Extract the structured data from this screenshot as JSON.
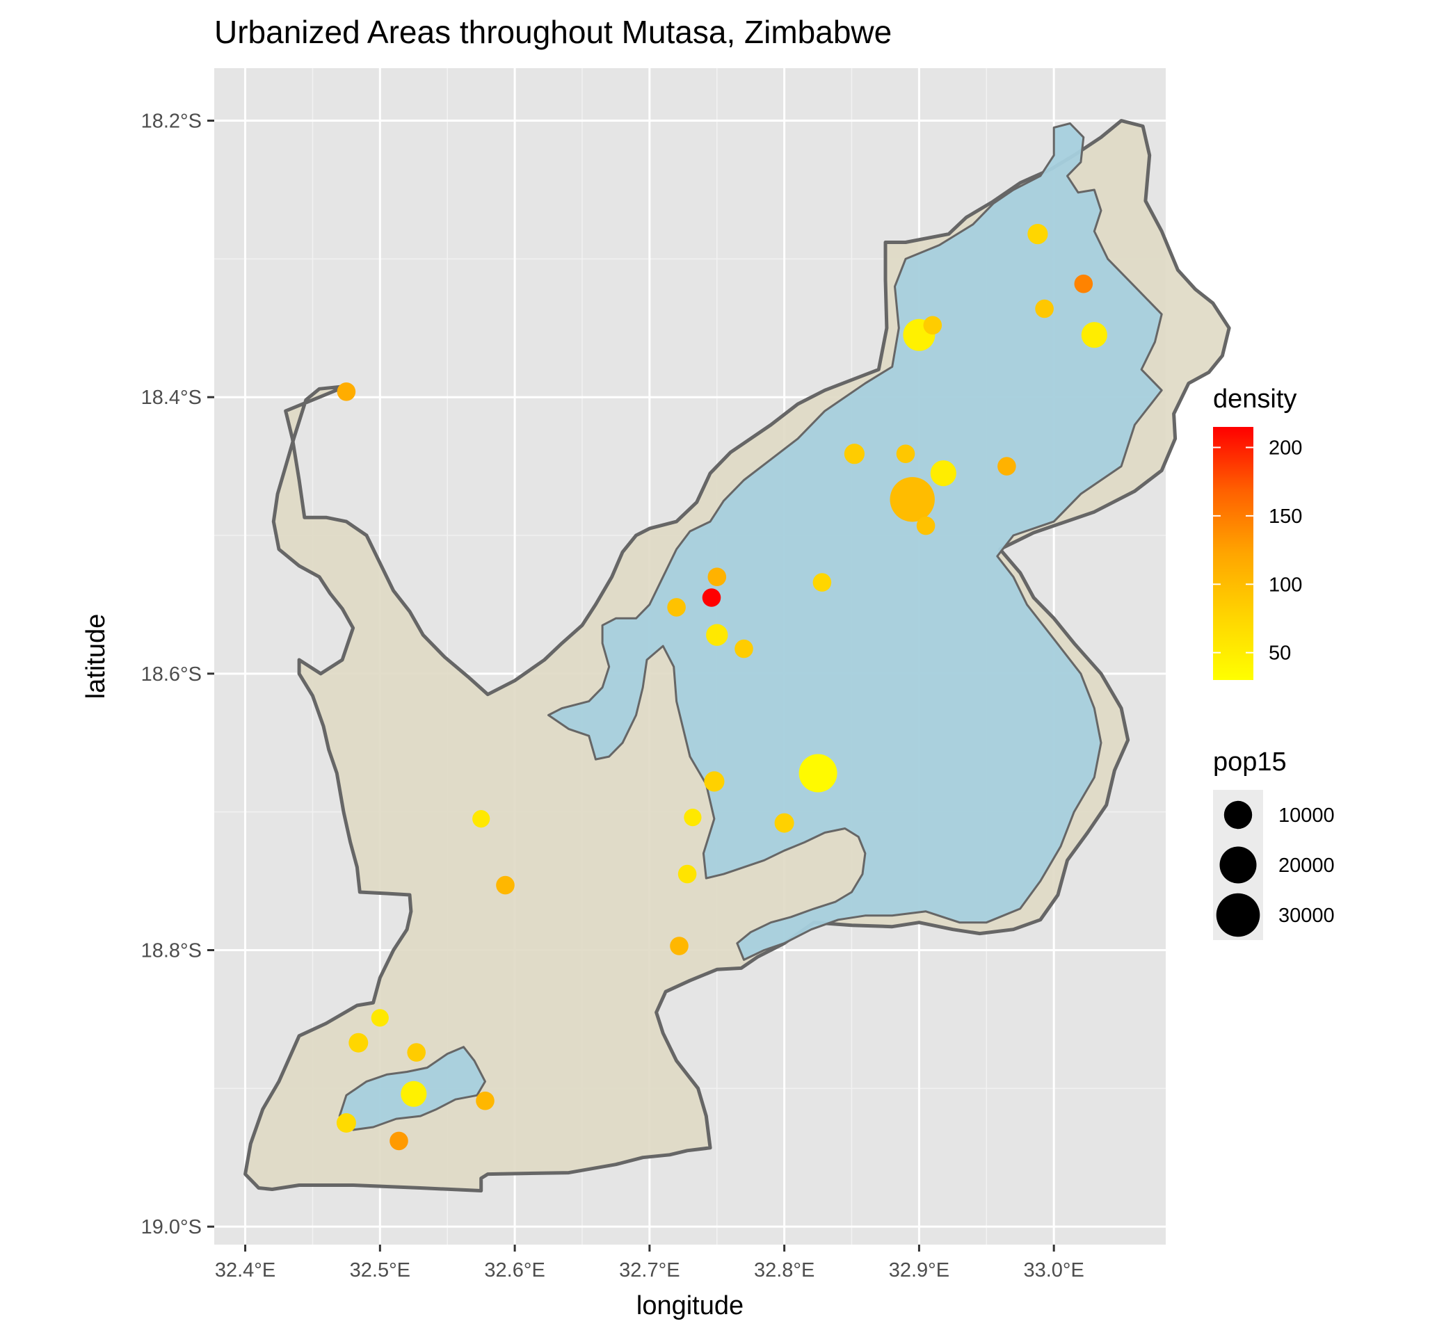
{
  "chart_data": {
    "type": "map",
    "title": "Urbanized Areas throughout Mutasa, Zimbabwe",
    "xlabel": "longitude",
    "ylabel": "latitude",
    "xlim": [
      32.377,
      33.083
    ],
    "ylim": [
      -19.013,
      -18.162
    ],
    "x_ticks": [
      {
        "value": 32.4,
        "label": "32.4°E"
      },
      {
        "value": 32.5,
        "label": "32.5°E"
      },
      {
        "value": 32.6,
        "label": "32.6°E"
      },
      {
        "value": 32.7,
        "label": "32.7°E"
      },
      {
        "value": 32.8,
        "label": "32.8°E"
      },
      {
        "value": 32.9,
        "label": "32.9°E"
      },
      {
        "value": 33.0,
        "label": "33.0°E"
      }
    ],
    "y_ticks": [
      {
        "value": -18.2,
        "label": "18.2°S"
      },
      {
        "value": -18.4,
        "label": "18.4°S"
      },
      {
        "value": -18.6,
        "label": "18.6°S"
      },
      {
        "value": -18.8,
        "label": "18.8°S"
      },
      {
        "value": -19.0,
        "label": "19.0°S"
      }
    ],
    "grid": true,
    "panel_background": "#e5e5e5",
    "district_fill": "#e0dac5",
    "urban_fill": "#a6d0de",
    "outline_color": "#666666",
    "legends": {
      "density": {
        "title": "density",
        "position": "right",
        "gradient": [
          "#ffff00",
          "#ffd500",
          "#ffa500",
          "#ff6000",
          "#ff0000"
        ],
        "range": [
          30,
          215
        ],
        "ticks": [
          {
            "value": 200,
            "label": "200"
          },
          {
            "value": 150,
            "label": "150"
          },
          {
            "value": 100,
            "label": "100"
          },
          {
            "value": 50,
            "label": "50"
          }
        ]
      },
      "pop15": {
        "title": "pop15",
        "position": "right",
        "entries": [
          {
            "value": 10000,
            "label": "10000"
          },
          {
            "value": 20000,
            "label": "20000"
          },
          {
            "value": 30000,
            "label": "30000"
          }
        ]
      }
    },
    "district": [
      [
        32.475,
        -18.392
      ],
      [
        32.455,
        -18.394
      ],
      [
        32.445,
        -18.402
      ],
      [
        32.436,
        -18.43
      ],
      [
        32.424,
        -18.47
      ],
      [
        32.421,
        -18.49
      ],
      [
        32.425,
        -18.51
      ],
      [
        32.44,
        -18.522
      ],
      [
        32.455,
        -18.53
      ],
      [
        32.463,
        -18.542
      ],
      [
        32.472,
        -18.553
      ],
      [
        32.48,
        -18.567
      ],
      [
        32.472,
        -18.59
      ],
      [
        32.456,
        -18.6
      ],
      [
        32.44,
        -18.59
      ],
      [
        32.44,
        -18.6
      ],
      [
        32.45,
        -18.616
      ],
      [
        32.458,
        -18.638
      ],
      [
        32.462,
        -18.655
      ],
      [
        32.468,
        -18.672
      ],
      [
        32.473,
        -18.7
      ],
      [
        32.478,
        -18.722
      ],
      [
        32.483,
        -18.74
      ],
      [
        32.485,
        -18.758
      ],
      [
        32.505,
        -18.759
      ],
      [
        32.522,
        -18.76
      ],
      [
        32.523,
        -18.772
      ],
      [
        32.52,
        -18.785
      ],
      [
        32.51,
        -18.8
      ],
      [
        32.5,
        -18.82
      ],
      [
        32.495,
        -18.838
      ],
      [
        32.483,
        -18.84
      ],
      [
        32.46,
        -18.853
      ],
      [
        32.44,
        -18.862
      ],
      [
        32.425,
        -18.895
      ],
      [
        32.413,
        -18.915
      ],
      [
        32.404,
        -18.94
      ],
      [
        32.4,
        -18.962
      ],
      [
        32.41,
        -18.972
      ],
      [
        32.42,
        -18.973
      ],
      [
        32.44,
        -18.97
      ],
      [
        32.48,
        -18.97
      ],
      [
        32.53,
        -18.972
      ],
      [
        32.575,
        -18.974
      ],
      [
        32.575,
        -18.965
      ],
      [
        32.58,
        -18.962
      ],
      [
        32.64,
        -18.961
      ],
      [
        32.675,
        -18.955
      ],
      [
        32.695,
        -18.95
      ],
      [
        32.715,
        -18.948
      ],
      [
        32.728,
        -18.945
      ],
      [
        32.745,
        -18.943
      ],
      [
        32.742,
        -18.92
      ],
      [
        32.736,
        -18.9
      ],
      [
        32.72,
        -18.88
      ],
      [
        32.71,
        -18.86
      ],
      [
        32.705,
        -18.845
      ],
      [
        32.712,
        -18.83
      ],
      [
        32.73,
        -18.822
      ],
      [
        32.75,
        -18.814
      ],
      [
        32.768,
        -18.813
      ],
      [
        32.78,
        -18.805
      ],
      [
        32.8,
        -18.795
      ],
      [
        32.822,
        -18.78
      ],
      [
        32.85,
        -18.782
      ],
      [
        32.88,
        -18.783
      ],
      [
        32.9,
        -18.78
      ],
      [
        32.925,
        -18.785
      ],
      [
        32.945,
        -18.788
      ],
      [
        32.97,
        -18.785
      ],
      [
        32.99,
        -18.778
      ],
      [
        33.003,
        -18.76
      ],
      [
        33.01,
        -18.735
      ],
      [
        33.025,
        -18.715
      ],
      [
        33.039,
        -18.695
      ],
      [
        33.045,
        -18.67
      ],
      [
        33.055,
        -18.648
      ],
      [
        33.05,
        -18.625
      ],
      [
        33.035,
        -18.6
      ],
      [
        33.015,
        -18.578
      ],
      [
        33.0,
        -18.56
      ],
      [
        32.985,
        -18.545
      ],
      [
        32.975,
        -18.527
      ],
      [
        32.96,
        -18.51
      ],
      [
        32.985,
        -18.498
      ],
      [
        33.03,
        -18.483
      ],
      [
        33.06,
        -18.468
      ],
      [
        33.08,
        -18.453
      ],
      [
        33.09,
        -18.43
      ],
      [
        33.089,
        -18.412
      ],
      [
        33.1,
        -18.39
      ],
      [
        33.115,
        -18.382
      ],
      [
        33.125,
        -18.37
      ],
      [
        33.13,
        -18.35
      ],
      [
        33.118,
        -18.332
      ],
      [
        33.105,
        -18.322
      ],
      [
        33.092,
        -18.308
      ],
      [
        33.08,
        -18.28
      ],
      [
        33.068,
        -18.258
      ],
      [
        33.071,
        -18.225
      ],
      [
        33.066,
        -18.204
      ],
      [
        33.05,
        -18.2
      ],
      [
        33.035,
        -18.212
      ],
      [
        33.015,
        -18.225
      ],
      [
        32.998,
        -18.235
      ],
      [
        32.975,
        -18.245
      ],
      [
        32.954,
        -18.259
      ],
      [
        32.935,
        -18.27
      ],
      [
        32.922,
        -18.282
      ],
      [
        32.89,
        -18.288
      ],
      [
        32.875,
        -18.288
      ],
      [
        32.875,
        -18.315
      ],
      [
        32.876,
        -18.35
      ],
      [
        32.87,
        -18.38
      ],
      [
        32.83,
        -18.395
      ],
      [
        32.81,
        -18.405
      ],
      [
        32.79,
        -18.42
      ],
      [
        32.76,
        -18.44
      ],
      [
        32.745,
        -18.455
      ],
      [
        32.735,
        -18.476
      ],
      [
        32.72,
        -18.49
      ],
      [
        32.7,
        -18.495
      ],
      [
        32.69,
        -18.5
      ],
      [
        32.68,
        -18.512
      ],
      [
        32.672,
        -18.53
      ],
      [
        32.66,
        -18.55
      ],
      [
        32.65,
        -18.565
      ],
      [
        32.635,
        -18.578
      ],
      [
        32.622,
        -18.59
      ],
      [
        32.6,
        -18.605
      ],
      [
        32.58,
        -18.615
      ],
      [
        32.565,
        -18.602
      ],
      [
        32.548,
        -18.588
      ],
      [
        32.532,
        -18.572
      ],
      [
        32.522,
        -18.555
      ],
      [
        32.51,
        -18.54
      ],
      [
        32.5,
        -18.52
      ],
      [
        32.49,
        -18.5
      ],
      [
        32.475,
        -18.49
      ],
      [
        32.46,
        -18.487
      ],
      [
        32.444,
        -18.487
      ],
      [
        32.44,
        -18.46
      ],
      [
        32.435,
        -18.43
      ],
      [
        32.43,
        -18.41
      ],
      [
        32.475,
        -18.392
      ]
    ],
    "urban": [
      [
        [
          33.0,
          -18.205
        ],
        [
          33.012,
          -18.202
        ],
        [
          33.022,
          -18.212
        ],
        [
          33.02,
          -18.23
        ],
        [
          33.01,
          -18.24
        ],
        [
          33.018,
          -18.252
        ],
        [
          33.03,
          -18.25
        ],
        [
          33.035,
          -18.265
        ],
        [
          33.03,
          -18.28
        ],
        [
          33.04,
          -18.3
        ],
        [
          33.06,
          -18.32
        ],
        [
          33.08,
          -18.34
        ],
        [
          33.075,
          -18.36
        ],
        [
          33.065,
          -18.38
        ],
        [
          33.08,
          -18.395
        ],
        [
          33.06,
          -18.42
        ],
        [
          33.05,
          -18.45
        ],
        [
          33.02,
          -18.47
        ],
        [
          33.0,
          -18.49
        ],
        [
          32.97,
          -18.5
        ],
        [
          32.958,
          -18.515
        ],
        [
          32.97,
          -18.53
        ],
        [
          32.98,
          -18.55
        ],
        [
          33.0,
          -18.575
        ],
        [
          33.02,
          -18.6
        ],
        [
          33.03,
          -18.625
        ],
        [
          33.035,
          -18.65
        ],
        [
          33.03,
          -18.675
        ],
        [
          33.015,
          -18.7
        ],
        [
          33.005,
          -18.725
        ],
        [
          32.99,
          -18.75
        ],
        [
          32.975,
          -18.77
        ],
        [
          32.95,
          -18.78
        ],
        [
          32.93,
          -18.78
        ],
        [
          32.905,
          -18.772
        ],
        [
          32.88,
          -18.775
        ],
        [
          32.86,
          -18.775
        ],
        [
          32.84,
          -18.778
        ],
        [
          32.82,
          -18.785
        ],
        [
          32.8,
          -18.795
        ],
        [
          32.785,
          -18.8
        ],
        [
          32.77,
          -18.807
        ],
        [
          32.765,
          -18.795
        ],
        [
          32.775,
          -18.787
        ],
        [
          32.79,
          -18.78
        ],
        [
          32.805,
          -18.776
        ],
        [
          32.822,
          -18.77
        ],
        [
          32.838,
          -18.765
        ],
        [
          32.85,
          -18.758
        ],
        [
          32.858,
          -18.745
        ],
        [
          32.86,
          -18.73
        ],
        [
          32.855,
          -18.718
        ],
        [
          32.845,
          -18.712
        ],
        [
          32.83,
          -18.715
        ],
        [
          32.815,
          -18.722
        ],
        [
          32.8,
          -18.728
        ],
        [
          32.785,
          -18.735
        ],
        [
          32.77,
          -18.74
        ],
        [
          32.755,
          -18.745
        ],
        [
          32.742,
          -18.748
        ],
        [
          32.74,
          -18.73
        ],
        [
          32.748,
          -18.705
        ],
        [
          32.742,
          -18.68
        ],
        [
          32.73,
          -18.66
        ],
        [
          32.725,
          -18.64
        ],
        [
          32.72,
          -18.62
        ],
        [
          32.718,
          -18.595
        ],
        [
          32.71,
          -18.58
        ],
        [
          32.698,
          -18.59
        ],
        [
          32.695,
          -18.61
        ],
        [
          32.69,
          -18.63
        ],
        [
          32.68,
          -18.65
        ],
        [
          32.67,
          -18.66
        ],
        [
          32.66,
          -18.662
        ],
        [
          32.655,
          -18.645
        ],
        [
          32.64,
          -18.64
        ],
        [
          32.625,
          -18.63
        ],
        [
          32.635,
          -18.625
        ],
        [
          32.655,
          -18.62
        ],
        [
          32.665,
          -18.61
        ],
        [
          32.67,
          -18.595
        ],
        [
          32.665,
          -18.578
        ],
        [
          32.665,
          -18.565
        ],
        [
          32.675,
          -18.56
        ],
        [
          32.69,
          -18.56
        ],
        [
          32.7,
          -18.55
        ],
        [
          32.71,
          -18.53
        ],
        [
          32.72,
          -18.51
        ],
        [
          32.73,
          -18.497
        ],
        [
          32.745,
          -18.49
        ],
        [
          32.755,
          -18.475
        ],
        [
          32.77,
          -18.46
        ],
        [
          32.79,
          -18.445
        ],
        [
          32.81,
          -18.43
        ],
        [
          32.83,
          -18.41
        ],
        [
          32.86,
          -18.39
        ],
        [
          32.88,
          -18.378
        ],
        [
          32.885,
          -18.35
        ],
        [
          32.882,
          -18.32
        ],
        [
          32.89,
          -18.3
        ],
        [
          32.915,
          -18.29
        ],
        [
          32.94,
          -18.275
        ],
        [
          32.955,
          -18.26
        ],
        [
          32.97,
          -18.25
        ],
        [
          32.99,
          -18.24
        ],
        [
          33.0,
          -18.225
        ],
        [
          33.0,
          -18.205
        ]
      ],
      [
        [
          32.475,
          -18.905
        ],
        [
          32.49,
          -18.895
        ],
        [
          32.505,
          -18.89
        ],
        [
          32.52,
          -18.888
        ],
        [
          32.535,
          -18.885
        ],
        [
          32.55,
          -18.875
        ],
        [
          32.562,
          -18.87
        ],
        [
          32.57,
          -18.88
        ],
        [
          32.578,
          -18.895
        ],
        [
          32.572,
          -18.905
        ],
        [
          32.556,
          -18.908
        ],
        [
          32.542,
          -18.915
        ],
        [
          32.53,
          -18.92
        ],
        [
          32.512,
          -18.922
        ],
        [
          32.495,
          -18.928
        ],
        [
          32.48,
          -18.93
        ],
        [
          32.47,
          -18.92
        ],
        [
          32.475,
          -18.905
        ]
      ]
    ],
    "settlements": [
      {
        "lon": 32.895,
        "lat": -18.474,
        "pop15": 32000,
        "density": 100
      },
      {
        "lon": 32.825,
        "lat": -18.672,
        "pop15": 22000,
        "density": 35
      },
      {
        "lon": 32.9,
        "lat": -18.355,
        "pop15": 14000,
        "density": 45
      },
      {
        "lon": 33.03,
        "lat": -18.355,
        "pop15": 8000,
        "density": 50
      },
      {
        "lon": 32.918,
        "lat": -18.455,
        "pop15": 8000,
        "density": 50
      },
      {
        "lon": 32.525,
        "lat": -18.904,
        "pop15": 8000,
        "density": 45
      },
      {
        "lon": 32.75,
        "lat": -18.572,
        "pop15": 5000,
        "density": 55
      },
      {
        "lon": 32.746,
        "lat": -18.545,
        "pop15": 3000,
        "density": 215
      },
      {
        "lon": 33.022,
        "lat": -18.318,
        "pop15": 3000,
        "density": 145
      },
      {
        "lon": 32.475,
        "lat": -18.396,
        "pop15": 3000,
        "density": 115
      },
      {
        "lon": 32.514,
        "lat": -18.938,
        "pop15": 3000,
        "density": 130
      },
      {
        "lon": 32.988,
        "lat": -18.282,
        "pop15": 4000,
        "density": 75
      },
      {
        "lon": 32.993,
        "lat": -18.336,
        "pop15": 3000,
        "density": 90
      },
      {
        "lon": 32.91,
        "lat": -18.348,
        "pop15": 3000,
        "density": 85
      },
      {
        "lon": 32.852,
        "lat": -18.441,
        "pop15": 4000,
        "density": 85
      },
      {
        "lon": 32.89,
        "lat": -18.441,
        "pop15": 3000,
        "density": 90
      },
      {
        "lon": 32.965,
        "lat": -18.45,
        "pop15": 3000,
        "density": 110
      },
      {
        "lon": 32.905,
        "lat": -18.493,
        "pop15": 3000,
        "density": 95
      },
      {
        "lon": 32.828,
        "lat": -18.534,
        "pop15": 3000,
        "density": 75
      },
      {
        "lon": 32.75,
        "lat": -18.53,
        "pop15": 3000,
        "density": 110
      },
      {
        "lon": 32.72,
        "lat": -18.552,
        "pop15": 3000,
        "density": 95
      },
      {
        "lon": 32.77,
        "lat": -18.582,
        "pop15": 3000,
        "density": 85
      },
      {
        "lon": 32.748,
        "lat": -18.678,
        "pop15": 4000,
        "density": 80
      },
      {
        "lon": 32.732,
        "lat": -18.704,
        "pop15": 2500,
        "density": 55
      },
      {
        "lon": 32.8,
        "lat": -18.708,
        "pop15": 3500,
        "density": 80
      },
      {
        "lon": 32.728,
        "lat": -18.745,
        "pop15": 3000,
        "density": 60
      },
      {
        "lon": 32.575,
        "lat": -18.705,
        "pop15": 2500,
        "density": 55
      },
      {
        "lon": 32.593,
        "lat": -18.753,
        "pop15": 3000,
        "density": 105
      },
      {
        "lon": 32.722,
        "lat": -18.797,
        "pop15": 3000,
        "density": 105
      },
      {
        "lon": 32.5,
        "lat": -18.849,
        "pop15": 2500,
        "density": 55
      },
      {
        "lon": 32.484,
        "lat": -18.867,
        "pop15": 3500,
        "density": 75
      },
      {
        "lon": 32.527,
        "lat": -18.874,
        "pop15": 3000,
        "density": 85
      },
      {
        "lon": 32.578,
        "lat": -18.909,
        "pop15": 3000,
        "density": 105
      },
      {
        "lon": 32.475,
        "lat": -18.925,
        "pop15": 3500,
        "density": 70
      }
    ]
  }
}
